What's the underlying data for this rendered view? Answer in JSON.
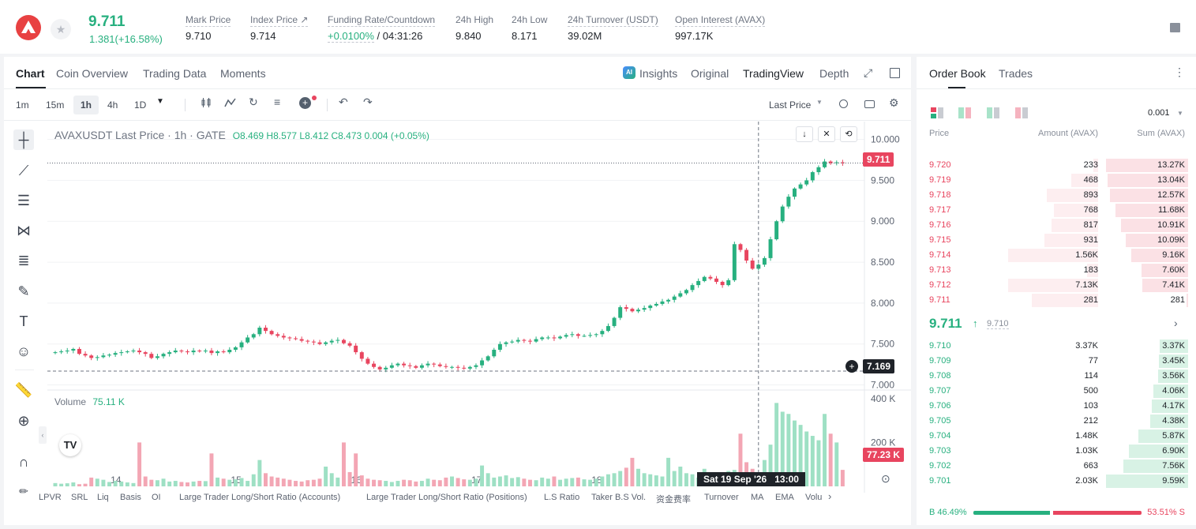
{
  "ticker": {
    "last_price": "9.711",
    "change": "1.381(+16.58%)",
    "stats": [
      {
        "label": "Mark Price",
        "value": "9.710"
      },
      {
        "label": "Index Price ↗",
        "value": "9.714"
      },
      {
        "label": "Funding Rate/Countdown",
        "value_rate": "+0.0100%",
        "value": "/ 04:31:26"
      },
      {
        "label": "24h High",
        "value": "9.840"
      },
      {
        "label": "24h Low",
        "value": "8.171"
      },
      {
        "label": "24h Turnover (USDT)",
        "value": "39.02M"
      },
      {
        "label": "Open Interest (AVAX)",
        "value": "997.17K"
      }
    ]
  },
  "chart_panel": {
    "tabs": [
      "Chart",
      "Coin Overview",
      "Trading Data",
      "Moments"
    ],
    "view_tabs": [
      "Insights",
      "Original",
      "TradingView",
      "Depth"
    ],
    "insights_badge": "AI",
    "intervals": [
      "1m",
      "15m",
      "1h",
      "4h",
      "1D"
    ],
    "active_interval": "1h",
    "price_type": "Last Price",
    "legend_title": "AVAXUSDT Last Price · 1h · GATE",
    "legend_ohlc": "O8.469  H8.577  L8.412  C8.473  0.004 (+0.05%)",
    "volume_label": "Volume",
    "volume_value": "75.11 K",
    "current_price_tag": "9.711",
    "crosshair_price": "7.169",
    "volume_tag": "77.23 K",
    "crosshair_time": "Sat 19 Sep '26   13:00",
    "indicators": [
      "LPVR",
      "SRL",
      "Liq",
      "Basis",
      "OI",
      "Large Trader Long/Short Ratio (Accounts)",
      "Large Trader Long/Short Ratio (Positions)",
      "L.S Ratio",
      "Taker B.S Vol.",
      "资金费率",
      "Turnover",
      "MA",
      "EMA",
      "Volu"
    ]
  },
  "chart_data": {
    "type": "candlestick",
    "title": "AVAXUSDT Last Price · 1h · GATE",
    "price_ticks": [
      "10.000",
      "9.500",
      "9.000",
      "8.500",
      "8.000",
      "7.500",
      "7.000"
    ],
    "price_tick_values": [
      10.0,
      9.5,
      9.0,
      8.5,
      8.0,
      7.5,
      7.0
    ],
    "ylim": [
      6.88,
      10.16
    ],
    "volume_ticks": [
      "400 K",
      "200 K"
    ],
    "volume_tick_values": [
      400,
      200
    ],
    "volume_ylim": [
      0,
      410
    ],
    "x_labels": [
      "14",
      "15",
      "16",
      "17",
      "18",
      "19"
    ],
    "x_label_index": [
      10,
      30,
      50,
      70,
      90,
      110
    ],
    "closes": [
      7.4,
      7.41,
      7.42,
      7.44,
      7.38,
      7.36,
      7.33,
      7.34,
      7.36,
      7.37,
      7.39,
      7.4,
      7.41,
      7.42,
      7.4,
      7.38,
      7.33,
      7.35,
      7.38,
      7.4,
      7.42,
      7.41,
      7.4,
      7.42,
      7.41,
      7.42,
      7.39,
      7.41,
      7.4,
      7.43,
      7.46,
      7.52,
      7.58,
      7.62,
      7.7,
      7.66,
      7.62,
      7.6,
      7.58,
      7.57,
      7.56,
      7.54,
      7.53,
      7.52,
      7.5,
      7.52,
      7.54,
      7.55,
      7.51,
      7.48,
      7.4,
      7.32,
      7.26,
      7.22,
      7.19,
      7.21,
      7.24,
      7.26,
      7.24,
      7.23,
      7.21,
      7.24,
      7.26,
      7.25,
      7.23,
      7.22,
      7.22,
      7.21,
      7.2,
      7.22,
      7.24,
      7.3,
      7.35,
      7.43,
      7.5,
      7.52,
      7.53,
      7.55,
      7.54,
      7.53,
      7.56,
      7.58,
      7.58,
      7.57,
      7.59,
      7.61,
      7.62,
      7.6,
      7.6,
      7.61,
      7.62,
      7.66,
      7.72,
      7.82,
      7.95,
      7.93,
      7.9,
      7.92,
      7.94,
      7.97,
      7.99,
      8.02,
      8.04,
      8.08,
      8.12,
      8.16,
      8.22,
      8.27,
      8.32,
      8.3,
      8.26,
      8.22,
      8.28,
      8.72,
      8.65,
      8.52,
      8.42,
      8.47,
      8.55,
      8.78,
      9.0,
      9.18,
      9.3,
      9.4,
      9.45,
      9.5,
      9.6,
      9.66,
      9.73,
      9.71,
      9.72,
      9.71
    ],
    "volumes": [
      15,
      12,
      14,
      18,
      10,
      12,
      40,
      35,
      30,
      20,
      25,
      22,
      18,
      15,
      200,
      45,
      30,
      28,
      35,
      22,
      25,
      20,
      18,
      22,
      25,
      24,
      150,
      40,
      35,
      30,
      32,
      38,
      25,
      55,
      120,
      60,
      45,
      40,
      35,
      30,
      25,
      22,
      28,
      30,
      35,
      90,
      60,
      40,
      200,
      65,
      150,
      50,
      35,
      30,
      28,
      25,
      20,
      25,
      30,
      28,
      22,
      25,
      35,
      30,
      28,
      40,
      45,
      38,
      32,
      30,
      35,
      95,
      60,
      40,
      45,
      50,
      38,
      42,
      35,
      30,
      28,
      40,
      35,
      45,
      30,
      35,
      38,
      40,
      32,
      30,
      35,
      45,
      55,
      60,
      70,
      85,
      130,
      80,
      60,
      55,
      50,
      45,
      130,
      70,
      90,
      60,
      55,
      40,
      80,
      60,
      50,
      60,
      70,
      75,
      240,
      110,
      80,
      55,
      120,
      190,
      380,
      340,
      330,
      300,
      280,
      250,
      230,
      210,
      330,
      240,
      200,
      75.11
    ],
    "current_price": 9.711,
    "crosshair_price": 7.169
  },
  "order_book": {
    "tabs": [
      "Order Book",
      "Trades"
    ],
    "precision": "0.001",
    "headers": [
      "Price",
      "Amount (AVAX)",
      "Sum (AVAX)"
    ],
    "asks": [
      {
        "price": "9.720",
        "amount": "233",
        "sum": "13.27K",
        "fa": 0.05,
        "fs": 1.0
      },
      {
        "price": "9.719",
        "amount": "468",
        "sum": "13.04K",
        "fa": 0.3,
        "fs": 0.98
      },
      {
        "price": "9.718",
        "amount": "893",
        "sum": "12.57K",
        "fa": 0.57,
        "fs": 0.95
      },
      {
        "price": "9.717",
        "amount": "768",
        "sum": "11.68K",
        "fa": 0.49,
        "fs": 0.88
      },
      {
        "price": "9.716",
        "amount": "817",
        "sum": "10.91K",
        "fa": 0.52,
        "fs": 0.82
      },
      {
        "price": "9.715",
        "amount": "931",
        "sum": "10.09K",
        "fa": 0.6,
        "fs": 0.76
      },
      {
        "price": "9.714",
        "amount": "1.56K",
        "sum": "9.16K",
        "fa": 1.0,
        "fs": 0.69
      },
      {
        "price": "9.713",
        "amount": "183",
        "sum": "7.60K",
        "fa": 0.12,
        "fs": 0.57
      },
      {
        "price": "9.712",
        "amount": "7.13K",
        "sum": "7.41K",
        "fa": 1.0,
        "fs": 0.56
      },
      {
        "price": "9.711",
        "amount": "281",
        "sum": "281",
        "fa": 0.74,
        "fs": 0.02
      }
    ],
    "mid_price": "9.711",
    "mid_mark": "9.710",
    "bids": [
      {
        "price": "9.710",
        "amount": "3.37K",
        "sum": "3.37K",
        "fa": 0.0,
        "fs": 0.35
      },
      {
        "price": "9.709",
        "amount": "77",
        "sum": "3.45K",
        "fa": 0.0,
        "fs": 0.36
      },
      {
        "price": "9.708",
        "amount": "114",
        "sum": "3.56K",
        "fa": 0.0,
        "fs": 0.37
      },
      {
        "price": "9.707",
        "amount": "500",
        "sum": "4.06K",
        "fa": 0.0,
        "fs": 0.42
      },
      {
        "price": "9.706",
        "amount": "103",
        "sum": "4.17K",
        "fa": 0.0,
        "fs": 0.44
      },
      {
        "price": "9.705",
        "amount": "212",
        "sum": "4.38K",
        "fa": 0.0,
        "fs": 0.46
      },
      {
        "price": "9.704",
        "amount": "1.48K",
        "sum": "5.87K",
        "fa": 0.0,
        "fs": 0.61
      },
      {
        "price": "9.703",
        "amount": "1.03K",
        "sum": "6.90K",
        "fa": 0.0,
        "fs": 0.72
      },
      {
        "price": "9.702",
        "amount": "663",
        "sum": "7.56K",
        "fa": 0.0,
        "fs": 0.79
      },
      {
        "price": "9.701",
        "amount": "2.03K",
        "sum": "9.59K",
        "fa": 0.0,
        "fs": 1.0
      }
    ],
    "buy_ratio": "B 46.49%",
    "sell_ratio": "53.51% S",
    "buy_fraction": 0.4649
  },
  "colors": {
    "up": "#27b07f",
    "down": "#e8455f",
    "brand": "#e84142"
  }
}
